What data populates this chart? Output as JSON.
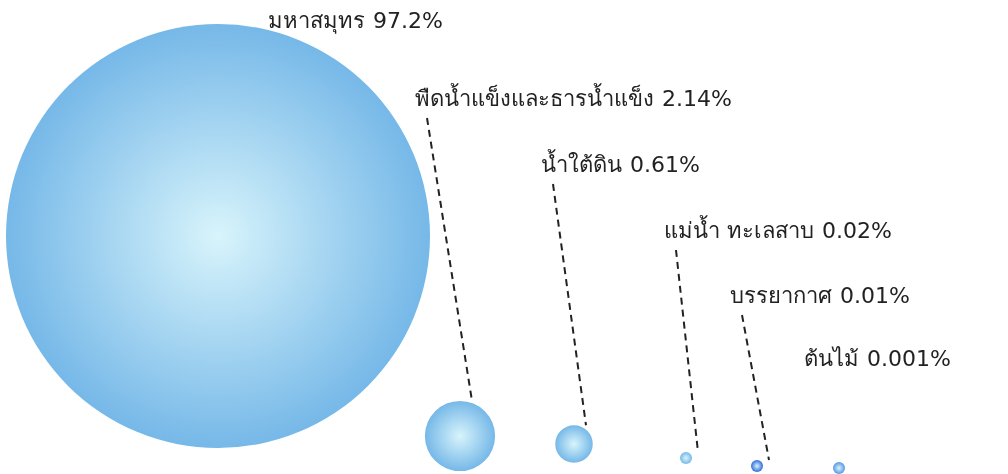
{
  "chart_data": {
    "type": "other",
    "categories": [
      "มหาสมุทร",
      "พืดน้ำแข็งและธารน้ำแข็ง",
      "น้ำใต้ดิน",
      "แม่น้ำ ทะเลสาบ",
      "บรรยากาศ",
      "ต้นไม้"
    ],
    "values": [
      97.2,
      2.14,
      0.61,
      0.02,
      0.01,
      0.001
    ],
    "value_labels": [
      "97.2%",
      "2.14%",
      "0.61%",
      "0.02%",
      "0.01%",
      "0.001%"
    ],
    "colors": [
      "#6cb2e6",
      "#6cb2e6",
      "#6cb2e6",
      "#6cb2e6",
      "#1f5fd8",
      "#4a8fe0"
    ]
  }
}
